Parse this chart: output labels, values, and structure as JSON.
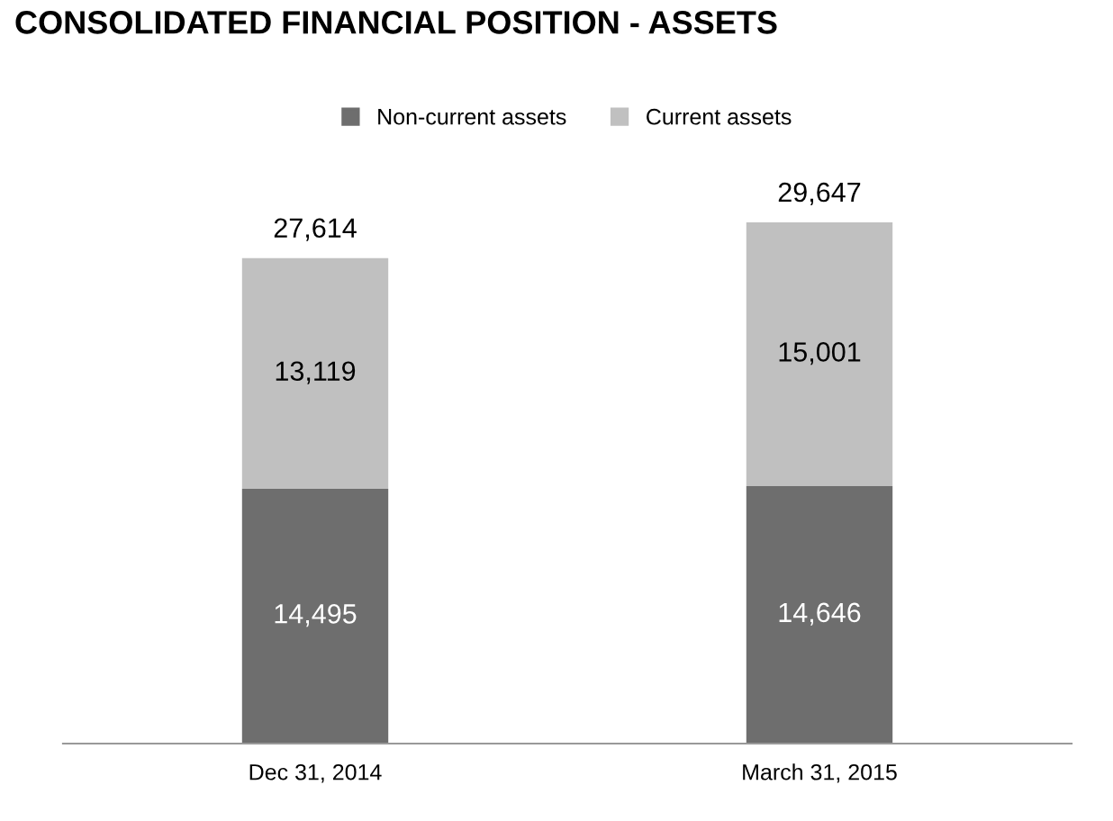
{
  "chart_data": {
    "type": "bar",
    "title": "CONSOLIDATED FINANCIAL POSITION - ASSETS",
    "stacked": true,
    "categories": [
      "Dec 31, 2014",
      "March 31, 2015"
    ],
    "series": [
      {
        "name": "Non-current assets",
        "color": "#6e6e6e",
        "values": [
          14495,
          14646
        ],
        "value_labels": [
          "14,495",
          "14,646"
        ]
      },
      {
        "name": "Current assets",
        "color": "#c0c0c0",
        "values": [
          13119,
          15001
        ],
        "value_labels": [
          "13,119",
          "15,001"
        ]
      }
    ],
    "totals": [
      "27,614",
      "29,647"
    ],
    "legend": "top",
    "grid": false
  }
}
